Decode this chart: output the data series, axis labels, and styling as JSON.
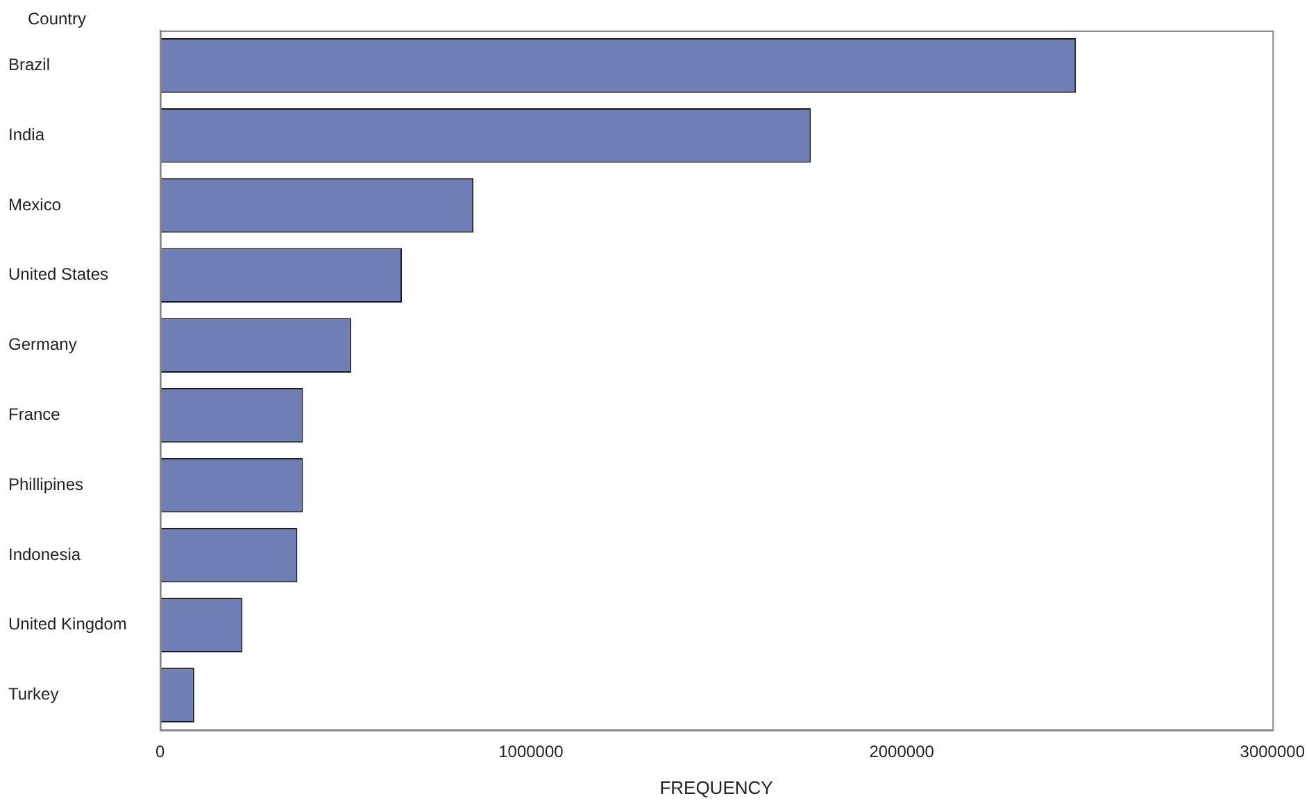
{
  "chart_data": {
    "type": "bar",
    "orientation": "horizontal",
    "xlabel": "FREQUENCY",
    "ylabel": "Country",
    "categories": [
      "Brazil",
      "India",
      "Mexico",
      "United States",
      "Germany",
      "France",
      "Phillipines",
      "Indonesia",
      "United Kingdom",
      "Turkey"
    ],
    "values": [
      2470000,
      1755000,
      845000,
      652000,
      515000,
      385000,
      385000,
      370000,
      222000,
      92000
    ],
    "color": "#6f7fb5",
    "xlim": [
      0,
      3000000
    ],
    "xticks": [
      0,
      1000000,
      2000000,
      3000000
    ],
    "grid": false,
    "legend": false
  }
}
